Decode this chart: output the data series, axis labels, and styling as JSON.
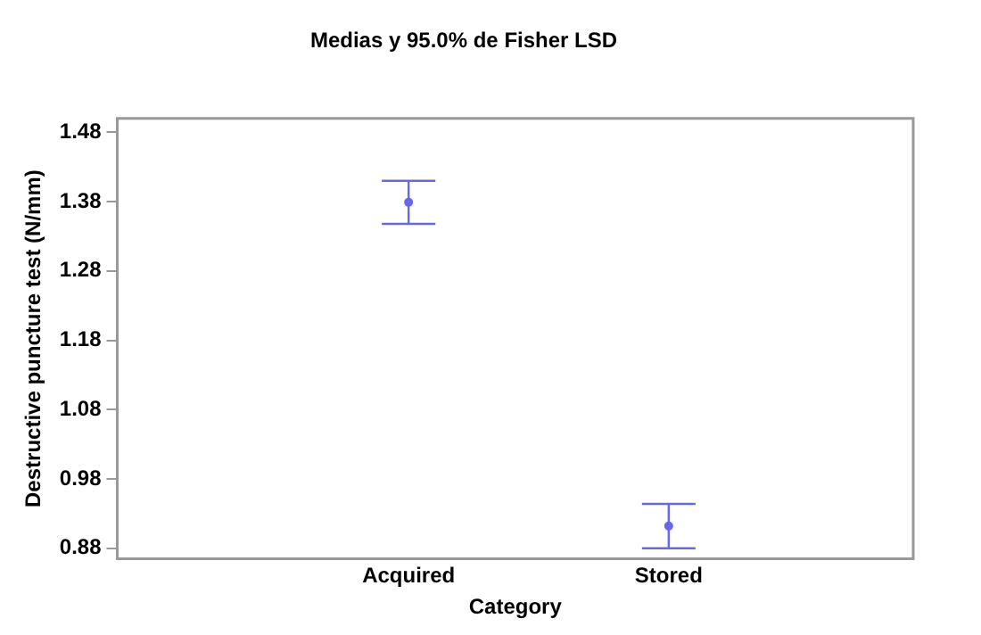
{
  "chart_data": {
    "type": "scatter",
    "title": "Medias y 95.0% de Fisher LSD",
    "xlabel": "Category",
    "ylabel": "Destructive puncture test (N/mm)",
    "categories": [
      "Acquired",
      "Stored"
    ],
    "series": [
      {
        "color": "#6666ee",
        "values": [
          1.379,
          0.912
        ],
        "errors": [
          0.031,
          0.032
        ]
      }
    ],
    "ylim": [
      0.865,
      1.5
    ],
    "yticks": [
      {
        "value": 0.88,
        "label": "0.88"
      },
      {
        "value": 0.98,
        "label": "0.98"
      },
      {
        "value": 1.08,
        "label": "1.08"
      },
      {
        "value": 1.18,
        "label": "1.18"
      },
      {
        "value": 1.28,
        "label": "1.28"
      },
      {
        "value": 1.38,
        "label": "1.38"
      },
      {
        "value": 1.48,
        "label": "1.48"
      }
    ],
    "grid": false,
    "legend": false,
    "marker": "circle"
  }
}
